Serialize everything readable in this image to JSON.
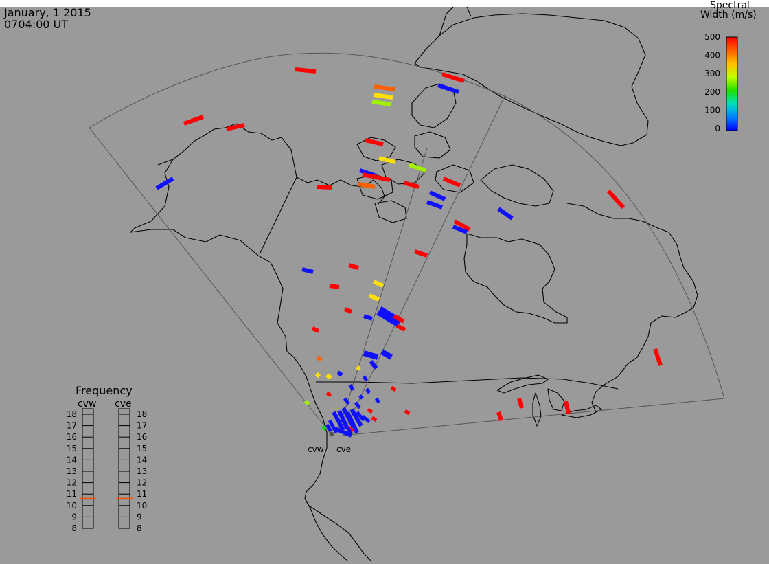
{
  "header": {
    "date": "January, 1 2015",
    "time": "0704:00 UT"
  },
  "colorbar": {
    "title_line1": "Spectral",
    "title_line2": "Width (m/s)",
    "ticks": [
      "500",
      "400",
      "300",
      "200",
      "100",
      "0"
    ],
    "stops": [
      "#ff0000",
      "#ff6000",
      "#ffc000",
      "#c0ff00",
      "#20e000",
      "#00e0c0",
      "#0080ff",
      "#0000ff"
    ]
  },
  "frequency_panel": {
    "title": "Frequency",
    "radars": [
      {
        "code": "cvw",
        "current_mhz": 10.6
      },
      {
        "code": "cve",
        "current_mhz": 10.6
      }
    ],
    "scale_labels": [
      "18",
      "17",
      "16",
      "15",
      "14",
      "13",
      "12",
      "11",
      "10",
      "9",
      "8"
    ]
  },
  "map": {
    "background": "#9a9a9a",
    "top_band": "#ffffff",
    "coastline_color": "#000000",
    "radar_site_labels": [
      "cvw",
      "cve"
    ],
    "echo_colors": {
      "red": "#ff0000",
      "orange": "#ff6000",
      "yellow": "#ffe000",
      "lime": "#a0f000",
      "green": "#20d020",
      "blue": "#1010ff"
    }
  }
}
